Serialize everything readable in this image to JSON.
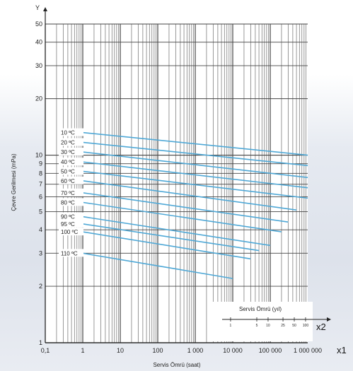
{
  "chart_data": {
    "type": "line",
    "title": "",
    "xlabel": "Servis Ömrü (saat)",
    "ylabel": "Çevre Gerilmesi (mPa)",
    "x_scale": "log",
    "y_scale": "log",
    "xlim": [
      0.1,
      1000000
    ],
    "ylim": [
      1,
      50
    ],
    "x_ticks": [
      0.1,
      1,
      10,
      100,
      1000,
      10000,
      100000,
      1000000
    ],
    "x_tick_labels": [
      "0,1",
      "1",
      "10",
      "100",
      "1 000",
      "10 000",
      "100 000",
      "1 000 000"
    ],
    "y_ticks": [
      1,
      2,
      3,
      4,
      5,
      6,
      7,
      8,
      9,
      10,
      20,
      30,
      40,
      50
    ],
    "y_tick_labels": [
      "1",
      "2",
      "3",
      "4",
      "5",
      "6",
      "7",
      "8",
      "9",
      "10",
      "20",
      "30",
      "40",
      "50"
    ],
    "y_axis_letter": "Y",
    "x_multiplier_label": "x1",
    "grid": true,
    "series": [
      {
        "name": "10 ºC",
        "x": [
          1,
          1000000
        ],
        "y": [
          13.2,
          10.0
        ]
      },
      {
        "name": "20 ºC",
        "x": [
          1,
          1000000
        ],
        "y": [
          11.7,
          8.8
        ]
      },
      {
        "name": "30 ºC",
        "x": [
          1,
          1000000
        ],
        "y": [
          10.4,
          7.6
        ]
      },
      {
        "name": "40 ºC",
        "x": [
          1,
          1000000
        ],
        "y": [
          9.2,
          6.7
        ]
      },
      {
        "name": "50 ºC",
        "x": [
          1,
          1000000
        ],
        "y": [
          8.2,
          5.9
        ]
      },
      {
        "name": "60 ºC",
        "x": [
          1,
          500000
        ],
        "y": [
          7.3,
          5.1
        ]
      },
      {
        "name": "70 ºC",
        "x": [
          1,
          300000
        ],
        "y": [
          6.3,
          4.4
        ]
      },
      {
        "name": "80 ºC",
        "x": [
          1,
          200000
        ],
        "y": [
          5.6,
          3.9
        ]
      },
      {
        "name": "90 ºC",
        "x": [
          1,
          100000
        ],
        "y": [
          4.7,
          3.3
        ]
      },
      {
        "name": "95 ºC",
        "x": [
          1,
          50000
        ],
        "y": [
          4.3,
          3.1
        ]
      },
      {
        "name": "100 ºC",
        "x": [
          1,
          30000
        ],
        "y": [
          3.9,
          2.8
        ]
      },
      {
        "name": "110 ºC",
        "x": [
          1,
          10000
        ],
        "y": [
          3.0,
          2.2
        ]
      }
    ],
    "line_color": "#4fa8d6",
    "inset": {
      "title": "Servis Ömrü (yıl)",
      "ticks": [
        "1",
        "5",
        "10",
        "25",
        "50",
        "100"
      ],
      "multiplier_label": "x2"
    }
  }
}
